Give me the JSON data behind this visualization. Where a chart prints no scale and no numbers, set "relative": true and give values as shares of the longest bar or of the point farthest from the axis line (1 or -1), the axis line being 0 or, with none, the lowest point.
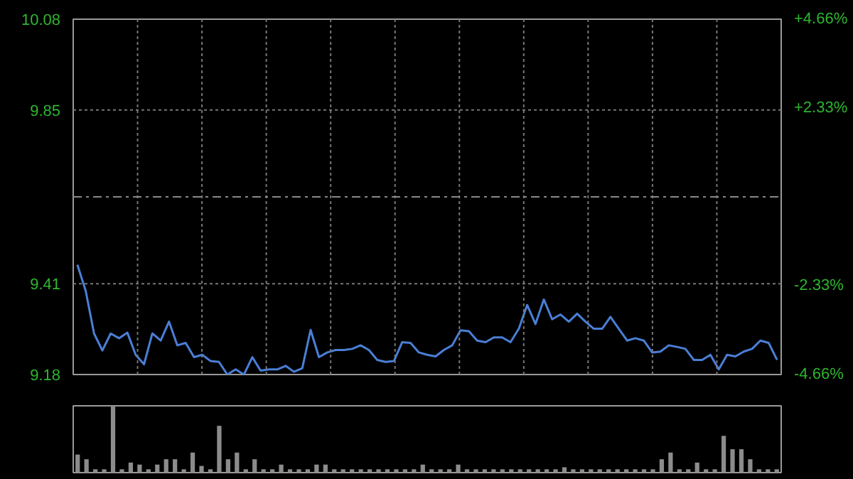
{
  "chart_data": [
    {
      "type": "line",
      "categories": [
        null,
        null,
        null,
        null,
        null,
        null,
        null,
        null,
        null,
        null,
        null,
        null,
        null,
        null,
        null,
        null,
        null,
        null,
        null,
        null,
        null,
        null,
        null,
        null,
        null,
        null,
        null,
        null,
        null,
        null,
        null,
        null,
        null,
        null,
        null,
        null,
        null,
        null,
        null,
        null,
        null,
        null,
        null,
        null,
        null,
        null,
        null,
        null,
        null,
        null,
        null,
        null,
        null,
        null,
        null,
        null,
        null,
        null,
        null,
        null,
        null,
        null,
        null,
        null,
        null,
        null,
        null,
        null,
        null,
        null,
        null,
        null,
        null,
        null,
        null,
        null,
        null,
        null,
        null,
        null,
        null,
        null,
        null,
        null,
        null
      ],
      "series": [
        {
          "color": "#4a7fd6",
          "values": [
            9.458,
            9.392,
            9.284,
            9.241,
            9.284,
            9.272,
            9.286,
            9.23,
            9.206,
            9.284,
            9.266,
            9.314,
            9.254,
            9.26,
            9.224,
            9.23,
            9.214,
            9.212,
            9.18,
            9.193,
            9.18,
            9.224,
            9.19,
            9.193,
            9.193,
            9.202,
            9.187,
            9.196,
            9.293,
            9.224,
            9.236,
            9.242,
            9.242,
            9.245,
            9.254,
            9.242,
            9.217,
            9.212,
            9.214,
            9.262,
            9.26,
            9.236,
            9.23,
            9.226,
            9.242,
            9.254,
            9.292,
            9.29,
            9.266,
            9.262,
            9.274,
            9.274,
            9.262,
            9.296,
            9.356,
            9.308,
            9.37,
            9.32,
            9.332,
            9.314,
            9.334,
            9.314,
            9.296,
            9.296,
            9.326,
            9.296,
            9.266,
            9.272,
            9.266,
            9.236,
            9.238,
            9.254,
            9.25,
            9.245,
            9.217,
            9.217,
            9.23,
            9.193,
            9.23,
            9.226,
            9.238,
            9.245,
            9.266,
            9.26,
            9.217
          ]
        }
      ],
      "ylim": [
        9.18,
        10.08
      ],
      "yticks": [
        9.18,
        9.41,
        9.85,
        10.08
      ],
      "y2lim": [
        -4.66,
        4.66
      ],
      "y2ticks": [
        {
          "value": -4.66,
          "label": "-4.66%"
        },
        {
          "value": -2.33,
          "label": "-2.33%"
        },
        {
          "value": 2.33,
          "label": "+2.33%"
        },
        {
          "value": 4.66,
          "label": "+4.66%"
        }
      ],
      "ref_lines": [
        {
          "axis": "y",
          "value": 9.63,
          "line_style": "dashed"
        }
      ],
      "grid": true
    },
    {
      "type": "bar",
      "relative": true,
      "color": "#8c8c8c",
      "categories": [
        null,
        null,
        null,
        null,
        null,
        null,
        null,
        null,
        null,
        null,
        null,
        null,
        null,
        null,
        null,
        null,
        null,
        null,
        null,
        null,
        null,
        null,
        null,
        null,
        null,
        null,
        null,
        null,
        null,
        null,
        null,
        null,
        null,
        null,
        null,
        null,
        null,
        null,
        null,
        null,
        null,
        null,
        null,
        null,
        null,
        null,
        null,
        null,
        null,
        null,
        null,
        null,
        null,
        null,
        null,
        null,
        null,
        null,
        null,
        null,
        null,
        null,
        null,
        null,
        null,
        null,
        null,
        null,
        null,
        null,
        null,
        null,
        null,
        null,
        null,
        null,
        null,
        null,
        null,
        null
      ],
      "values": [
        0.27,
        0.2,
        0.05,
        0.05,
        1.0,
        0.05,
        0.15,
        0.12,
        0.05,
        0.12,
        0.2,
        0.2,
        0.05,
        0.3,
        0.1,
        0.05,
        0.7,
        0.2,
        0.3,
        0.05,
        0.2,
        0.05,
        0.05,
        0.12,
        0.05,
        0.05,
        0.05,
        0.12,
        0.12,
        0.05,
        0.05,
        0.05,
        0.05,
        0.05,
        0.05,
        0.05,
        0.05,
        0.05,
        0.05,
        0.12,
        0.05,
        0.05,
        0.05,
        0.12,
        0.05,
        0.05,
        0.05,
        0.05,
        0.05,
        0.05,
        0.05,
        0.05,
        0.05,
        0.05,
        0.05,
        0.08,
        0.05,
        0.05,
        0.05,
        0.05,
        0.05,
        0.05,
        0.05,
        0.05,
        0.05,
        0.05,
        0.2,
        0.3,
        0.05,
        0.05,
        0.15,
        0.05,
        0.05,
        0.55,
        0.35,
        0.35,
        0.2,
        0.05,
        0.05,
        0.05
      ]
    }
  ]
}
